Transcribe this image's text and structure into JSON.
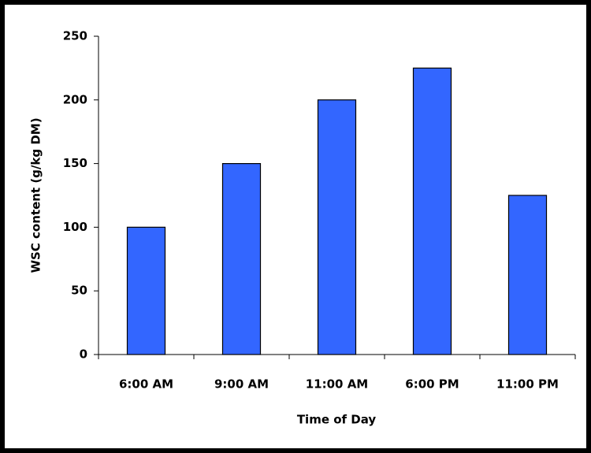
{
  "chart_data": {
    "type": "bar",
    "categories": [
      "6:00 AM",
      "9:00 AM",
      "11:00 AM",
      "6:00 PM",
      "11:00 PM"
    ],
    "values": [
      100,
      150,
      200,
      225,
      125
    ],
    "color": "#3366ff",
    "ylim": [
      0,
      250
    ],
    "yticks": [
      0,
      50,
      100,
      150,
      200,
      250
    ],
    "y_label": "WSC content (g/kg DM)",
    "x_label": "Time of Day",
    "grid": false
  }
}
